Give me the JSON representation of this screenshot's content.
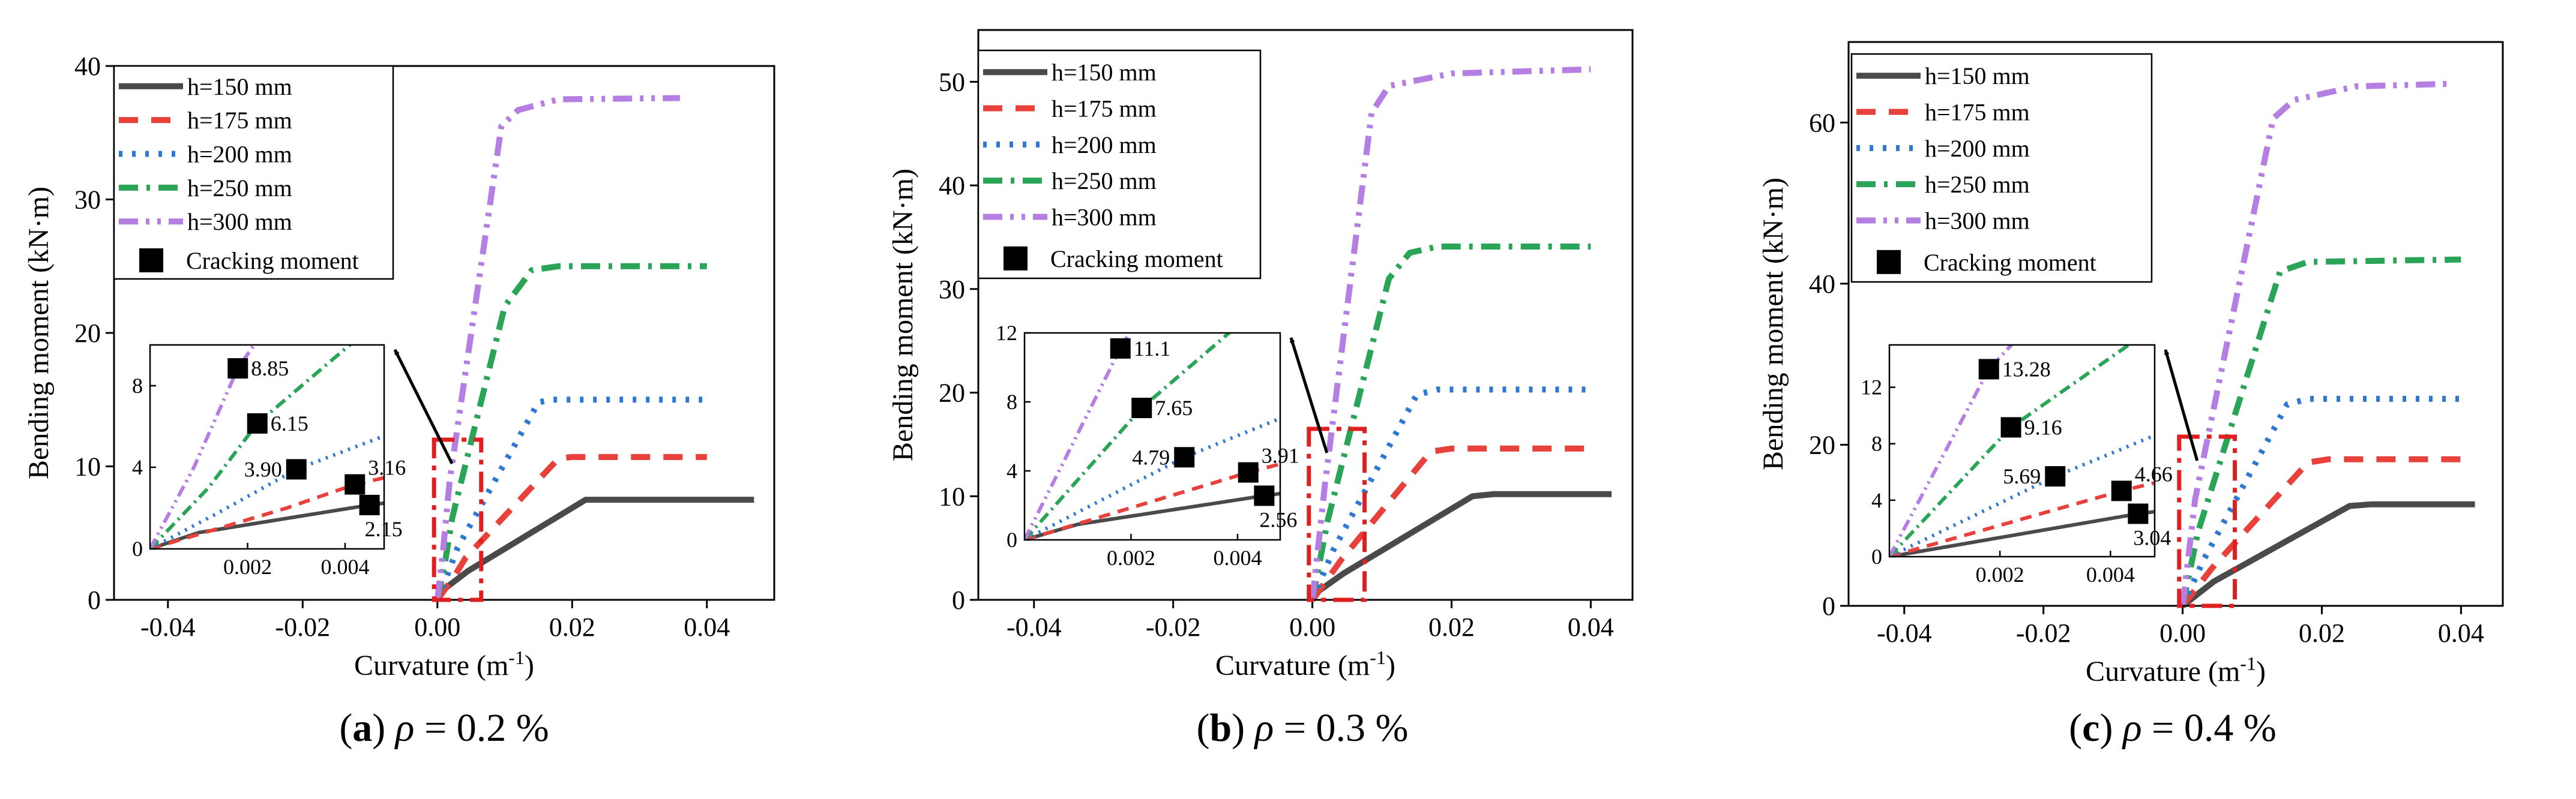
{
  "chart_data": [
    {
      "type": "line",
      "panel_letter": "(a)",
      "panel_caption": "ρ = 0.2 %",
      "xlabel": "Curvature (m",
      "xlabel_sup": "-1",
      "xlabel_end": ")",
      "ylabel": "Bending moment (kN·m)",
      "xlim": [
        -0.048,
        0.05
      ],
      "ylim": [
        0,
        40
      ],
      "xticks": [
        -0.04,
        -0.02,
        0.0,
        0.02,
        0.04
      ],
      "xtick_labels": [
        "-0.04",
        "-0.02",
        "0.00",
        "0.02",
        "0.04"
      ],
      "yticks": [
        0,
        10,
        20,
        30,
        40
      ],
      "ytick_labels": [
        "0",
        "10",
        "20",
        "30",
        "40"
      ],
      "series": [
        {
          "name": "h=150 mm",
          "color": "#4a4a4a",
          "dash": "solid",
          "curve": {
            "points": [
              [
                0.0,
                0.0
              ],
              [
                0.001,
                0.8
              ],
              [
                0.0045,
                2.15
              ],
              [
                0.022,
                7.5
              ],
              [
                0.047,
                7.5
              ]
            ]
          }
        },
        {
          "name": "h=175 mm",
          "color": "#e8413b",
          "dash": "dash",
          "curve": {
            "points": [
              [
                0.0,
                0.0
              ],
              [
                0.0028,
                2.0
              ],
              [
                0.0042,
                3.16
              ],
              [
                0.018,
                10.6
              ],
              [
                0.02,
                10.7
              ],
              [
                0.04,
                10.7
              ]
            ]
          }
        },
        {
          "name": "h=200 mm",
          "color": "#2e78d2",
          "dash": "dot",
          "curve": {
            "points": [
              [
                0.0,
                0.0
              ],
              [
                0.0015,
                1.9
              ],
              [
                0.003,
                3.9
              ],
              [
                0.015,
                14.8
              ],
              [
                0.017,
                15.0
              ],
              [
                0.04,
                15.0
              ]
            ]
          }
        },
        {
          "name": "h=250 mm",
          "color": "#2aa457",
          "dash": "dashdot",
          "curve": {
            "points": [
              [
                0.0,
                0.0
              ],
              [
                0.0012,
                3.0
              ],
              [
                0.0022,
                6.15
              ],
              [
                0.01,
                22.0
              ],
              [
                0.014,
                24.7
              ],
              [
                0.018,
                25.0
              ],
              [
                0.04,
                25.0
              ]
            ]
          }
        },
        {
          "name": "h=300 mm",
          "color": "#b57ee3",
          "dash": "dashdotdot",
          "curve": {
            "points": [
              [
                0.0,
                0.0
              ],
              [
                0.0009,
                4.0
              ],
              [
                0.0018,
                8.85
              ],
              [
                0.0095,
                35.5
              ],
              [
                0.012,
                36.7
              ],
              [
                0.018,
                37.5
              ],
              [
                0.036,
                37.6
              ]
            ]
          }
        }
      ],
      "legend": {
        "position": "top-left",
        "marker_label": "Cracking moment"
      },
      "inset": {
        "xlim": [
          0,
          0.0048
        ],
        "ylim": [
          0,
          10
        ],
        "xticks": [
          0.002,
          0.004
        ],
        "xtick_labels": [
          "0.002",
          "0.004"
        ],
        "yticks": [
          0,
          4,
          8
        ],
        "ytick_labels": [
          "0",
          "4",
          "8"
        ],
        "cracking_points": [
          {
            "x": 0.0018,
            "y": 8.85,
            "label": "8.85"
          },
          {
            "x": 0.0022,
            "y": 6.15,
            "label": "6.15"
          },
          {
            "x": 0.003,
            "y": 3.9,
            "label": "3.90"
          },
          {
            "x": 0.0042,
            "y": 3.16,
            "label": "3.16"
          },
          {
            "x": 0.0045,
            "y": 2.15,
            "label": "2.15"
          }
        ],
        "zoom_box": {
          "x": [
            -0.0005,
            0.0065
          ],
          "y": [
            0,
            12
          ]
        }
      }
    },
    {
      "type": "line",
      "panel_letter": "(b)",
      "panel_caption": "ρ = 0.3 %",
      "xlabel": "Curvature (m",
      "xlabel_sup": "-1",
      "xlabel_end": ")",
      "ylabel": "Bending moment (kN·m)",
      "xlim": [
        -0.048,
        0.046
      ],
      "ylim": [
        0,
        55
      ],
      "xticks": [
        -0.04,
        -0.02,
        0.0,
        0.02,
        0.04
      ],
      "xtick_labels": [
        "-0.04",
        "-0.02",
        "0.00",
        "0.02",
        "0.04"
      ],
      "yticks": [
        0,
        10,
        20,
        30,
        40,
        50
      ],
      "ytick_labels": [
        "0",
        "10",
        "20",
        "30",
        "40",
        "50"
      ],
      "series": [
        {
          "name": "h=150 mm",
          "color": "#4a4a4a",
          "dash": "solid",
          "curve": {
            "points": [
              [
                0.0,
                0.0
              ],
              [
                0.001,
                0.9
              ],
              [
                0.0045,
                2.56
              ],
              [
                0.023,
                10.0
              ],
              [
                0.026,
                10.2
              ],
              [
                0.043,
                10.2
              ]
            ]
          }
        },
        {
          "name": "h=175 mm",
          "color": "#e8413b",
          "dash": "dash",
          "curve": {
            "points": [
              [
                0.0,
                0.0
              ],
              [
                0.0042,
                3.91
              ],
              [
                0.017,
                14.3
              ],
              [
                0.02,
                14.6
              ],
              [
                0.04,
                14.6
              ]
            ]
          }
        },
        {
          "name": "h=200 mm",
          "color": "#2e78d2",
          "dash": "dot",
          "curve": {
            "points": [
              [
                0.0,
                0.0
              ],
              [
                0.003,
                4.79
              ],
              [
                0.015,
                19.8
              ],
              [
                0.018,
                20.3
              ],
              [
                0.04,
                20.3
              ]
            ]
          }
        },
        {
          "name": "h=250 mm",
          "color": "#2aa457",
          "dash": "dashdot",
          "curve": {
            "points": [
              [
                0.0,
                0.0
              ],
              [
                0.0022,
                7.65
              ],
              [
                0.011,
                31.0
              ],
              [
                0.014,
                33.5
              ],
              [
                0.018,
                34.1
              ],
              [
                0.04,
                34.1
              ]
            ]
          }
        },
        {
          "name": "h=300 mm",
          "color": "#b57ee3",
          "dash": "dashdotdot",
          "curve": {
            "points": [
              [
                0.0,
                0.0
              ],
              [
                0.0018,
                11.1
              ],
              [
                0.0085,
                47.0
              ],
              [
                0.011,
                49.6
              ],
              [
                0.02,
                50.8
              ],
              [
                0.04,
                51.2
              ]
            ]
          }
        }
      ],
      "legend": {
        "position": "top-left",
        "marker_label": "Cracking moment"
      },
      "inset": {
        "xlim": [
          0,
          0.0048
        ],
        "ylim": [
          0,
          12
        ],
        "xticks": [
          0.002,
          0.004
        ],
        "xtick_labels": [
          "0.002",
          "0.004"
        ],
        "yticks": [
          0,
          4,
          8,
          12
        ],
        "ytick_labels": [
          "0",
          "4",
          "8",
          "12"
        ],
        "cracking_points": [
          {
            "x": 0.0018,
            "y": 11.1,
            "label": "11.1"
          },
          {
            "x": 0.0022,
            "y": 7.65,
            "label": "7.65"
          },
          {
            "x": 0.003,
            "y": 4.79,
            "label": "4.79"
          },
          {
            "x": 0.0042,
            "y": 3.91,
            "label": "3.91"
          },
          {
            "x": 0.0045,
            "y": 2.56,
            "label": "2.56"
          }
        ],
        "zoom_box": {
          "x": [
            -0.0005,
            0.0075
          ],
          "y": [
            0,
            16.5
          ]
        }
      }
    },
    {
      "type": "line",
      "panel_letter": "(c)",
      "panel_caption": "ρ = 0.4 %",
      "xlabel": "Curvature (m",
      "xlabel_sup": "-1",
      "xlabel_end": ")",
      "ylabel": "Bending moment (kN·m)",
      "xlim": [
        -0.048,
        0.046
      ],
      "ylim": [
        0,
        70
      ],
      "xticks": [
        -0.04,
        -0.02,
        0.0,
        0.02,
        0.04
      ],
      "xtick_labels": [
        "-0.04",
        "-0.02",
        "0.00",
        "0.02",
        "0.04"
      ],
      "yticks": [
        0,
        20,
        40,
        60
      ],
      "ytick_labels": [
        "0",
        "20",
        "40",
        "60"
      ],
      "series": [
        {
          "name": "h=150 mm",
          "color": "#4a4a4a",
          "dash": "solid",
          "curve": {
            "points": [
              [
                0.0,
                0.0
              ],
              [
                0.0045,
                3.04
              ],
              [
                0.024,
                12.4
              ],
              [
                0.027,
                12.6
              ],
              [
                0.042,
                12.6
              ]
            ]
          }
        },
        {
          "name": "h=175 mm",
          "color": "#e8413b",
          "dash": "dash",
          "curve": {
            "points": [
              [
                0.0,
                0.0
              ],
              [
                0.0042,
                4.66
              ],
              [
                0.018,
                17.8
              ],
              [
                0.021,
                18.2
              ],
              [
                0.04,
                18.2
              ]
            ]
          }
        },
        {
          "name": "h=200 mm",
          "color": "#2e78d2",
          "dash": "dot",
          "curve": {
            "points": [
              [
                0.0,
                0.0
              ],
              [
                0.003,
                5.69
              ],
              [
                0.015,
                25.0
              ],
              [
                0.018,
                25.7
              ],
              [
                0.04,
                25.7
              ]
            ]
          }
        },
        {
          "name": "h=250 mm",
          "color": "#2aa457",
          "dash": "dashdot",
          "curve": {
            "points": [
              [
                0.0,
                0.0
              ],
              [
                0.0022,
                9.16
              ],
              [
                0.014,
                41.5
              ],
              [
                0.018,
                42.7
              ],
              [
                0.04,
                43.0
              ]
            ]
          }
        },
        {
          "name": "h=300 mm",
          "color": "#b57ee3",
          "dash": "dashdotdot",
          "curve": {
            "points": [
              [
                0.0,
                0.0
              ],
              [
                0.0018,
                13.28
              ],
              [
                0.013,
                60.5
              ],
              [
                0.016,
                62.8
              ],
              [
                0.025,
                64.5
              ],
              [
                0.038,
                64.8
              ]
            ]
          }
        }
      ],
      "legend": {
        "position": "top-left",
        "marker_label": "Cracking moment"
      },
      "inset": {
        "xlim": [
          0,
          0.0048
        ],
        "ylim": [
          0,
          15
        ],
        "xticks": [
          0.002,
          0.004
        ],
        "xtick_labels": [
          "0.002",
          "0.004"
        ],
        "yticks": [
          0,
          4,
          8,
          12
        ],
        "ytick_labels": [
          "0",
          "4",
          "8",
          "12"
        ],
        "cracking_points": [
          {
            "x": 0.0018,
            "y": 13.28,
            "label": "13.28"
          },
          {
            "x": 0.0022,
            "y": 9.16,
            "label": "9.16"
          },
          {
            "x": 0.003,
            "y": 5.69,
            "label": "5.69"
          },
          {
            "x": 0.0042,
            "y": 4.66,
            "label": "4.66"
          },
          {
            "x": 0.0045,
            "y": 3.04,
            "label": "3.04"
          }
        ],
        "zoom_box": {
          "x": [
            -0.0005,
            0.0075
          ],
          "y": [
            0,
            21
          ]
        }
      }
    }
  ]
}
